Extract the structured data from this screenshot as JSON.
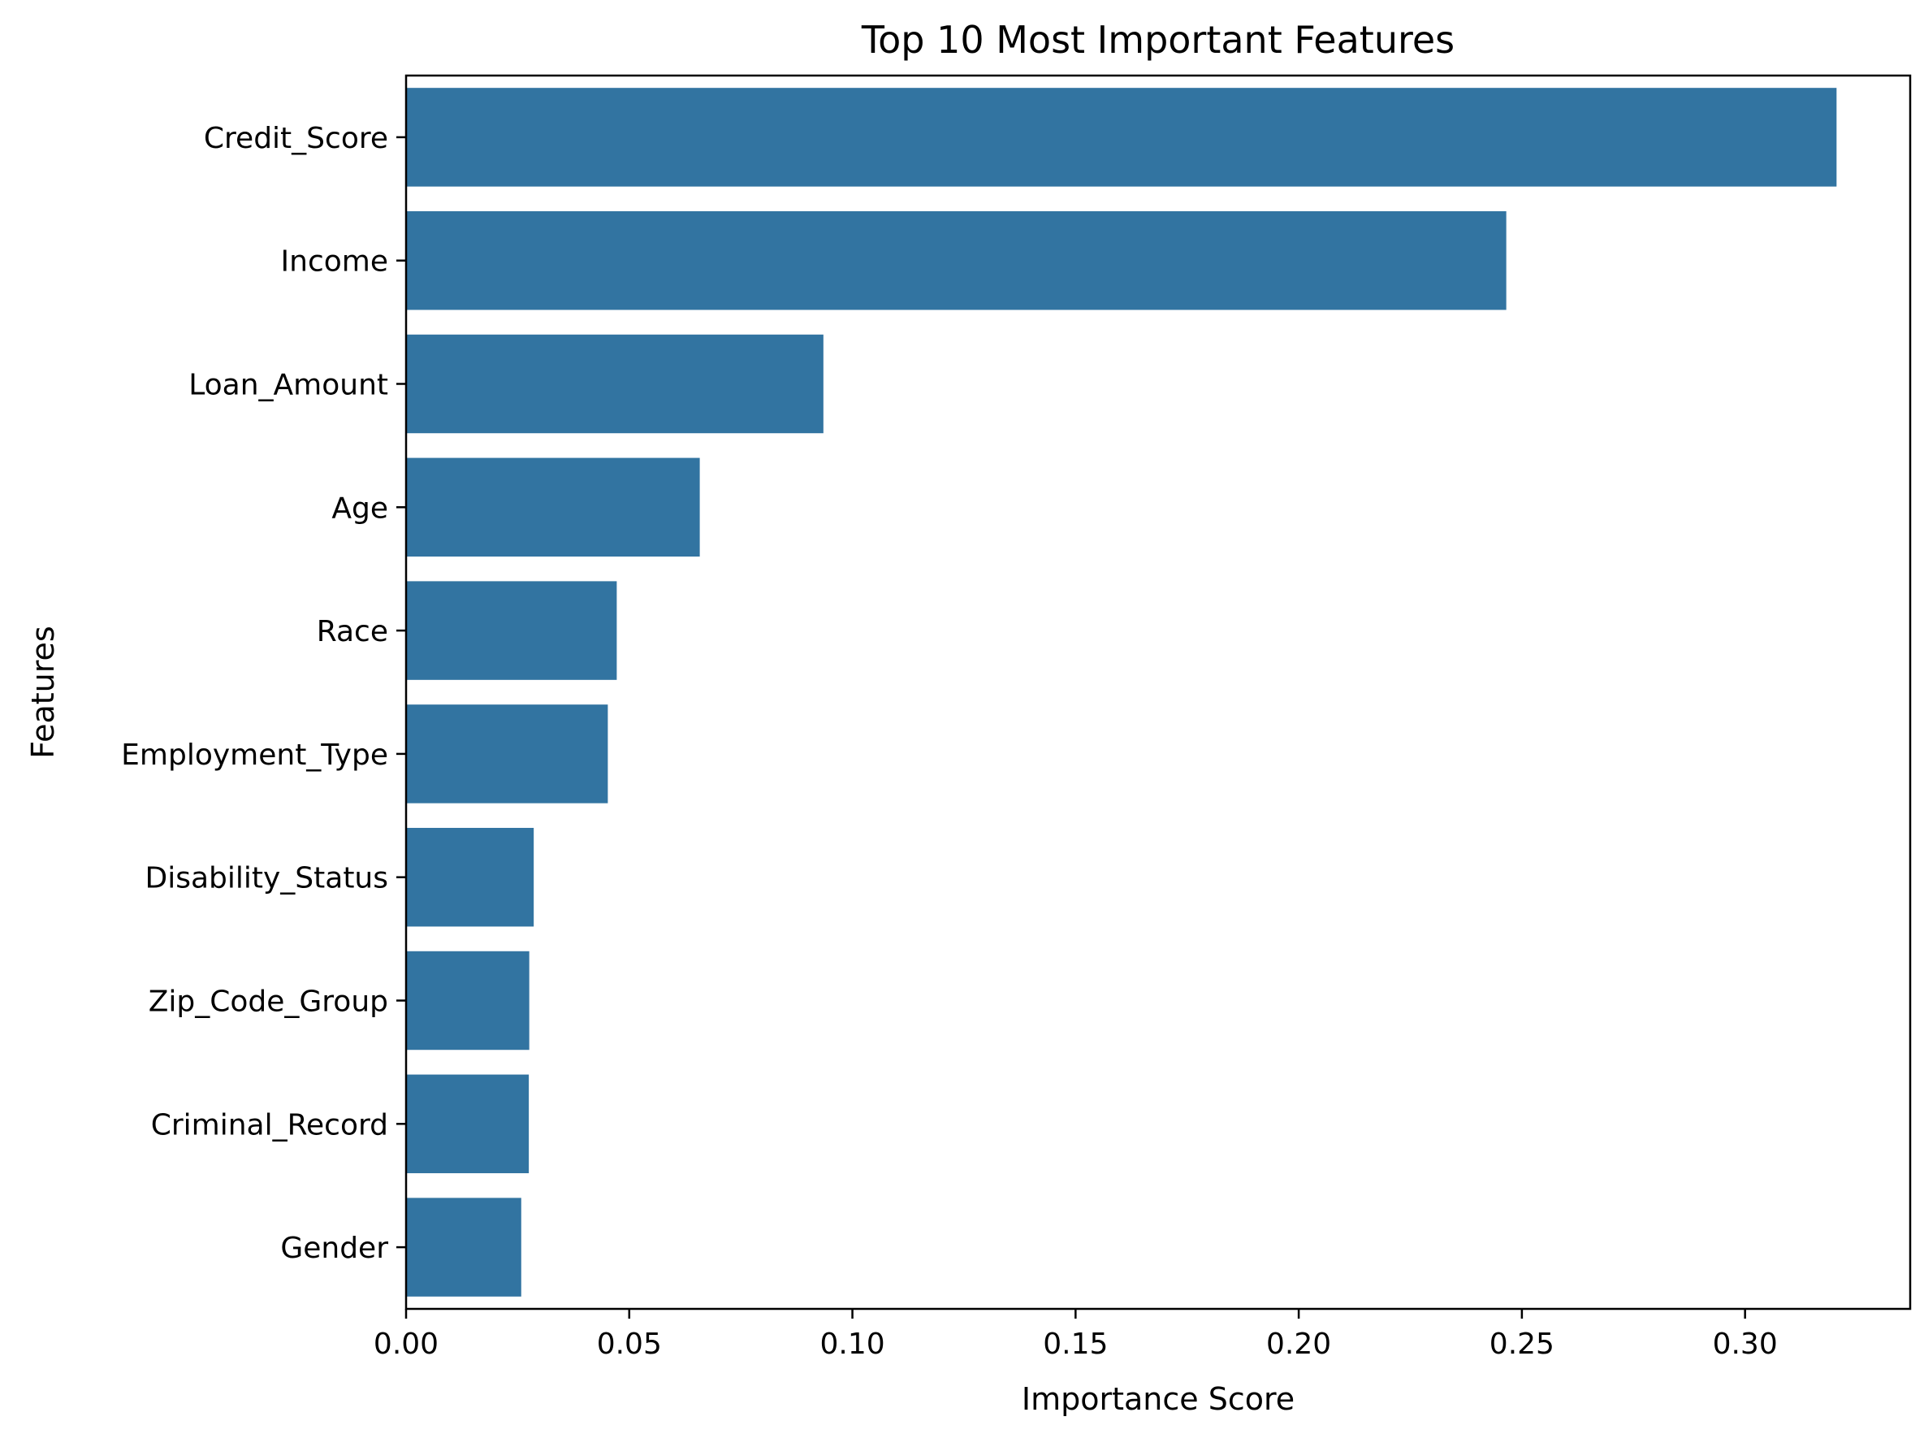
{
  "chart_data": {
    "type": "bar",
    "orientation": "horizontal",
    "title": "Top 10 Most Important Features",
    "xlabel": "Importance Score",
    "ylabel": "Features",
    "categories": [
      "Credit_Score",
      "Income",
      "Loan_Amount",
      "Age",
      "Race",
      "Employment_Type",
      "Disability_Status",
      "Zip_Code_Group",
      "Criminal_Record",
      "Gender"
    ],
    "values": [
      0.3205,
      0.2465,
      0.0935,
      0.0658,
      0.0472,
      0.0452,
      0.0286,
      0.0276,
      0.0275,
      0.0258
    ],
    "xlim": [
      0.0,
      0.337
    ],
    "xticks": [
      0.0,
      0.05,
      0.1,
      0.15,
      0.2,
      0.25,
      0.3
    ],
    "xtick_labels": [
      "0.00",
      "0.05",
      "0.10",
      "0.15",
      "0.20",
      "0.25",
      "0.30"
    ],
    "grid": false,
    "legend": "none",
    "bar_color": "#3274a1"
  }
}
